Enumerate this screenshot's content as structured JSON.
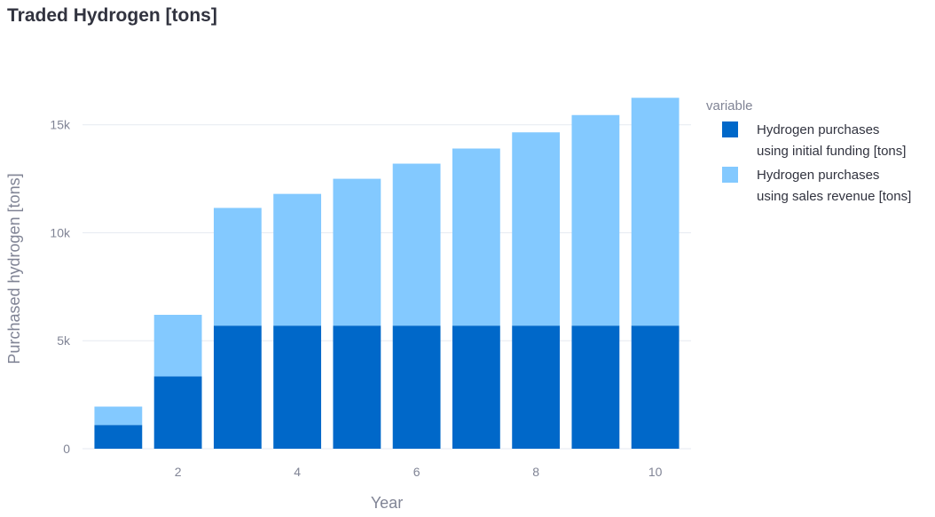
{
  "chart_data": {
    "type": "bar",
    "stacked": true,
    "title": "Traded Hydrogen [tons]",
    "xlabel": "Year",
    "ylabel": "Purchased hydrogen [tons]",
    "x": [
      1,
      2,
      3,
      4,
      5,
      6,
      7,
      8,
      9,
      10
    ],
    "x_ticks": [
      "2",
      "4",
      "6",
      "8",
      "10"
    ],
    "y_ticks": [
      "0",
      "5k",
      "10k",
      "15k"
    ],
    "ylim": [
      0,
      17000
    ],
    "xlim": [
      0.4,
      10.6
    ],
    "grid": true,
    "legend": {
      "title": "variable",
      "position": "right"
    },
    "series": [
      {
        "name_lines": [
          "Hydrogen purchases",
          "using initial funding [tons]"
        ],
        "color": "#0068c9",
        "values": [
          1100,
          3350,
          5700,
          5700,
          5700,
          5700,
          5700,
          5700,
          5700,
          5700
        ]
      },
      {
        "name_lines": [
          "Hydrogen purchases",
          "using sales revenue [tons]"
        ],
        "color": "#83c9ff",
        "values": [
          850,
          2850,
          5450,
          6100,
          6800,
          7500,
          8200,
          8950,
          9750,
          10550
        ]
      }
    ]
  }
}
